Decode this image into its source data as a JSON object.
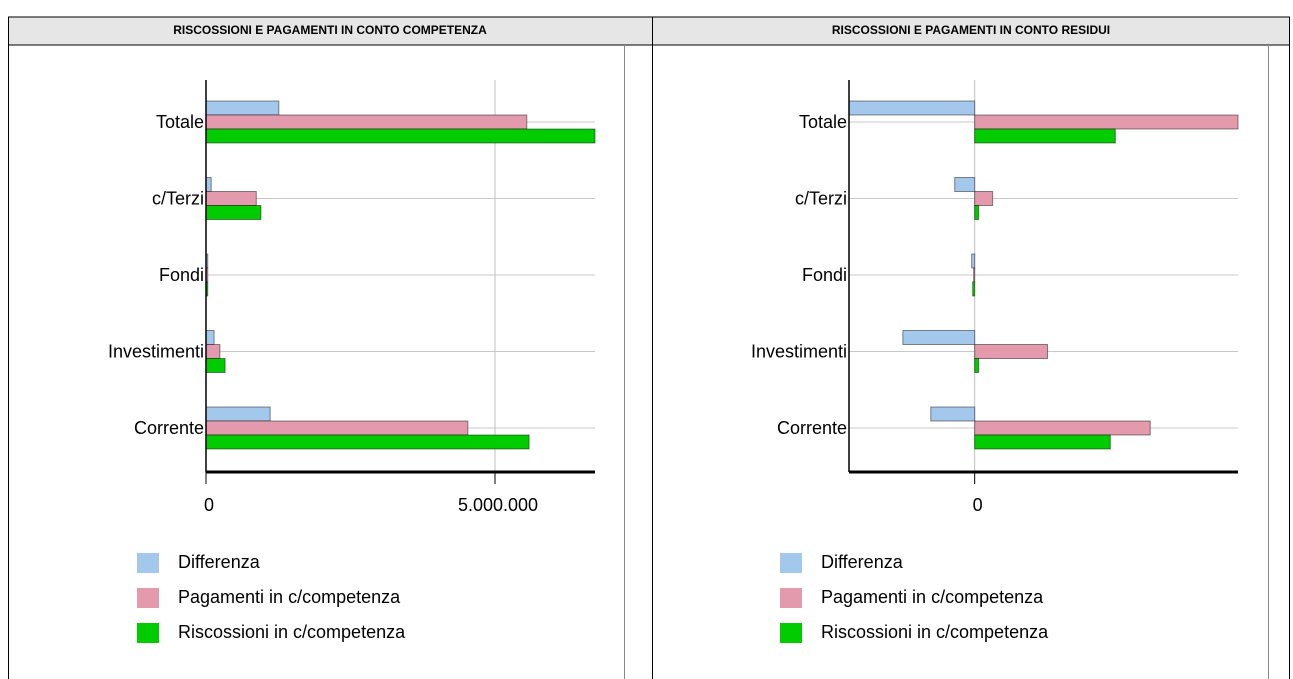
{
  "chart_data": [
    {
      "type": "bar",
      "title": "RISCOSSIONI E PAGAMENTI IN CONTO COMPETENZA",
      "categories": [
        "Totale",
        "c/Terzi",
        "Fondi",
        "Investimenti",
        "Corrente"
      ],
      "series": [
        {
          "name": "Differenza",
          "color": "#a4c8ec",
          "values": [
            1260000,
            90000,
            30000,
            140000,
            1110000
          ]
        },
        {
          "name": "Pagamenti in c/competenza",
          "color": "#e39aac",
          "values": [
            5550000,
            870000,
            30000,
            240000,
            4530000
          ]
        },
        {
          "name": "Riscossioni in c/competenza",
          "color": "#00cc00",
          "values": [
            6730000,
            950000,
            30000,
            330000,
            5590000
          ]
        }
      ],
      "xlim": [
        0,
        6730000
      ],
      "xticks": [
        0,
        {
          "value": 5000000,
          "label": "5.000.000"
        }
      ],
      "grid": true
    },
    {
      "type": "bar",
      "title": "RISCOSSIONI E PAGAMENTI IN CONTO RESIDUI",
      "categories": [
        "Totale",
        "c/Terzi",
        "Fondi",
        "Investimenti",
        "Corrente"
      ],
      "series": [
        {
          "name": "Differenza",
          "color": "#a4c8ec",
          "values": [
            -1260000,
            -200000,
            -30000,
            -720000,
            -440000
          ]
        },
        {
          "name": "Pagamenti in c/competenza",
          "color": "#e39aac",
          "values": [
            2640000,
            180000,
            -10000,
            730000,
            1760000
          ]
        },
        {
          "name": "Riscossioni in c/competenza",
          "color": "#00cc00",
          "values": [
            1410000,
            40000,
            -20000,
            40000,
            1360000
          ]
        }
      ],
      "xlim": [
        -1260000,
        2640000
      ],
      "xticks": [
        0
      ],
      "grid": true
    }
  ]
}
